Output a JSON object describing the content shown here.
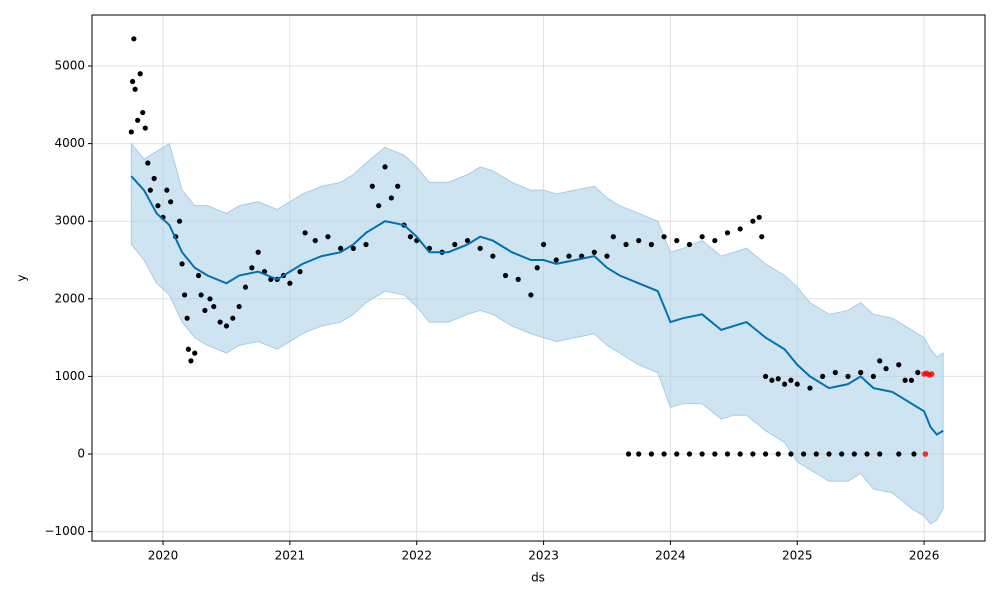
{
  "chart_data": {
    "type": "forecast",
    "xlabel": "ds",
    "ylabel": "y",
    "xlim": [
      2019.44,
      2026.48
    ],
    "ylim": [
      -1121,
      5657
    ],
    "xticks": [
      2020,
      2021,
      2022,
      2023,
      2024,
      2025,
      2026
    ],
    "yticks": [
      {
        "value": -1000,
        "label": "−1000"
      },
      0,
      1000,
      2000,
      3000,
      4000,
      5000
    ],
    "grid": true,
    "forecast": {
      "color": "#0072b2",
      "band_color": "#a6cde6",
      "x": [
        2019.75,
        2019.85,
        2019.95,
        2020.05,
        2020.15,
        2020.25,
        2020.35,
        2020.5,
        2020.6,
        2020.75,
        2020.9,
        2021.0,
        2021.1,
        2021.25,
        2021.4,
        2021.5,
        2021.6,
        2021.75,
        2021.9,
        2022.0,
        2022.1,
        2022.25,
        2022.4,
        2022.5,
        2022.6,
        2022.75,
        2022.9,
        2023.0,
        2023.1,
        2023.25,
        2023.4,
        2023.5,
        2023.6,
        2023.75,
        2023.9,
        2024.0,
        2024.1,
        2024.25,
        2024.4,
        2024.5,
        2024.6,
        2024.75,
        2024.9,
        2025.0,
        2025.1,
        2025.25,
        2025.4,
        2025.5,
        2025.6,
        2025.75,
        2025.9,
        2026.0,
        2026.05,
        2026.1,
        2026.15
      ],
      "values": [
        3580,
        3400,
        3100,
        2950,
        2600,
        2400,
        2300,
        2200,
        2300,
        2350,
        2250,
        2350,
        2450,
        2550,
        2600,
        2700,
        2850,
        3000,
        2950,
        2800,
        2600,
        2600,
        2700,
        2800,
        2750,
        2600,
        2500,
        2500,
        2450,
        2500,
        2550,
        2400,
        2300,
        2200,
        2100,
        1700,
        1750,
        1800,
        1600,
        1650,
        1700,
        1500,
        1350,
        1150,
        1000,
        850,
        900,
        1000,
        850,
        800,
        650,
        550,
        350,
        250,
        300
      ],
      "lower": [
        2700,
        2500,
        2200,
        2050,
        1700,
        1500,
        1400,
        1300,
        1400,
        1450,
        1350,
        1450,
        1550,
        1650,
        1700,
        1800,
        1950,
        2100,
        2050,
        1900,
        1700,
        1700,
        1800,
        1850,
        1800,
        1650,
        1550,
        1500,
        1450,
        1500,
        1550,
        1400,
        1300,
        1150,
        1050,
        600,
        650,
        650,
        450,
        500,
        500,
        300,
        150,
        -100,
        -200,
        -350,
        -350,
        -250,
        -450,
        -500,
        -700,
        -800,
        -900,
        -850,
        -700
      ],
      "upper": [
        4000,
        3800,
        3900,
        4000,
        3400,
        3200,
        3200,
        3100,
        3200,
        3250,
        3150,
        3250,
        3350,
        3450,
        3500,
        3600,
        3750,
        3950,
        3850,
        3700,
        3500,
        3500,
        3600,
        3700,
        3650,
        3500,
        3400,
        3400,
        3350,
        3400,
        3450,
        3300,
        3200,
        3100,
        3000,
        2600,
        2650,
        2750,
        2550,
        2600,
        2650,
        2450,
        2300,
        2150,
        1950,
        1800,
        1850,
        1950,
        1800,
        1750,
        1600,
        1500,
        1350,
        1250,
        1300
      ]
    },
    "observed": {
      "color": "#000000",
      "x": [
        2019.75,
        2019.76,
        2019.77,
        2019.78,
        2019.8,
        2019.82,
        2019.84,
        2019.86,
        2019.88,
        2019.9,
        2019.93,
        2019.96,
        2020.0,
        2020.03,
        2020.06,
        2020.1,
        2020.13,
        2020.15,
        2020.17,
        2020.19,
        2020.2,
        2020.22,
        2020.25,
        2020.28,
        2020.3,
        2020.33,
        2020.37,
        2020.4,
        2020.45,
        2020.5,
        2020.55,
        2020.6,
        2020.65,
        2020.7,
        2020.75,
        2020.8,
        2020.85,
        2020.9,
        2020.95,
        2021.0,
        2021.08,
        2021.12,
        2021.2,
        2021.3,
        2021.4,
        2021.5,
        2021.6,
        2021.65,
        2021.7,
        2021.75,
        2021.8,
        2021.85,
        2021.9,
        2021.95,
        2022.0,
        2022.1,
        2022.2,
        2022.3,
        2022.4,
        2022.5,
        2022.6,
        2022.7,
        2022.8,
        2022.9,
        2022.95,
        2023.0,
        2023.1,
        2023.2,
        2023.3,
        2023.4,
        2023.5,
        2023.55,
        2023.65,
        2023.75,
        2023.85,
        2023.95,
        2024.05,
        2024.15,
        2024.25,
        2024.35,
        2024.45,
        2024.55,
        2024.65,
        2024.7,
        2024.72,
        2024.75,
        2024.8,
        2024.85,
        2024.9,
        2024.95,
        2025.0,
        2025.1,
        2025.2,
        2025.3,
        2025.4,
        2025.5,
        2025.6,
        2025.65,
        2025.7,
        2025.8,
        2025.85,
        2025.9,
        2025.95,
        2023.67,
        2023.75,
        2023.85,
        2023.95,
        2024.05,
        2024.15,
        2024.25,
        2024.35,
        2024.45,
        2024.55,
        2024.65,
        2024.75,
        2024.85,
        2024.95,
        2025.05,
        2025.15,
        2025.25,
        2025.35,
        2025.45,
        2025.55,
        2025.65,
        2025.8,
        2025.92
      ],
      "values": [
        4150,
        4800,
        5350,
        4700,
        4300,
        4900,
        4400,
        4200,
        3750,
        3400,
        3550,
        3200,
        3050,
        3400,
        3250,
        2800,
        3000,
        2450,
        2050,
        1750,
        1350,
        1200,
        1300,
        2300,
        2050,
        1850,
        2000,
        1900,
        1700,
        1650,
        1750,
        1900,
        2150,
        2400,
        2600,
        2350,
        2250,
        2250,
        2300,
        2200,
        2350,
        2850,
        2750,
        2800,
        2650,
        2650,
        2700,
        3450,
        3200,
        3700,
        3300,
        3450,
        2950,
        2800,
        2750,
        2650,
        2600,
        2700,
        2750,
        2650,
        2550,
        2300,
        2250,
        2050,
        2400,
        2700,
        2500,
        2550,
        2550,
        2600,
        2550,
        2800,
        2700,
        2750,
        2700,
        2800,
        2750,
        2700,
        2800,
        2750,
        2850,
        2900,
        3000,
        3050,
        2800,
        1000,
        950,
        970,
        900,
        950,
        900,
        850,
        1000,
        1050,
        1000,
        1050,
        1000,
        1200,
        1100,
        1150,
        950,
        950,
        1050,
        0,
        0,
        0,
        0,
        0,
        0,
        0,
        0,
        0,
        0,
        0,
        0,
        0,
        0,
        0,
        0,
        0,
        0,
        0,
        0,
        0,
        0,
        0
      ]
    },
    "recent": {
      "color": "#ff0000",
      "x": [
        2026.0,
        2026.02,
        2026.04,
        2026.06,
        2026.01
      ],
      "values": [
        1030,
        1040,
        1020,
        1030,
        0
      ]
    }
  }
}
